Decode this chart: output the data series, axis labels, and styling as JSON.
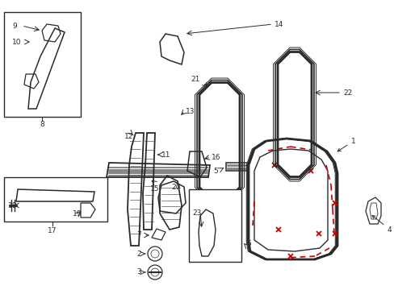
{
  "bg_color": "#ffffff",
  "line_color": "#2a2a2a",
  "red_color": "#cc0000",
  "gray_color": "#888888",
  "fig_w": 4.89,
  "fig_h": 3.6,
  "dpi": 100
}
